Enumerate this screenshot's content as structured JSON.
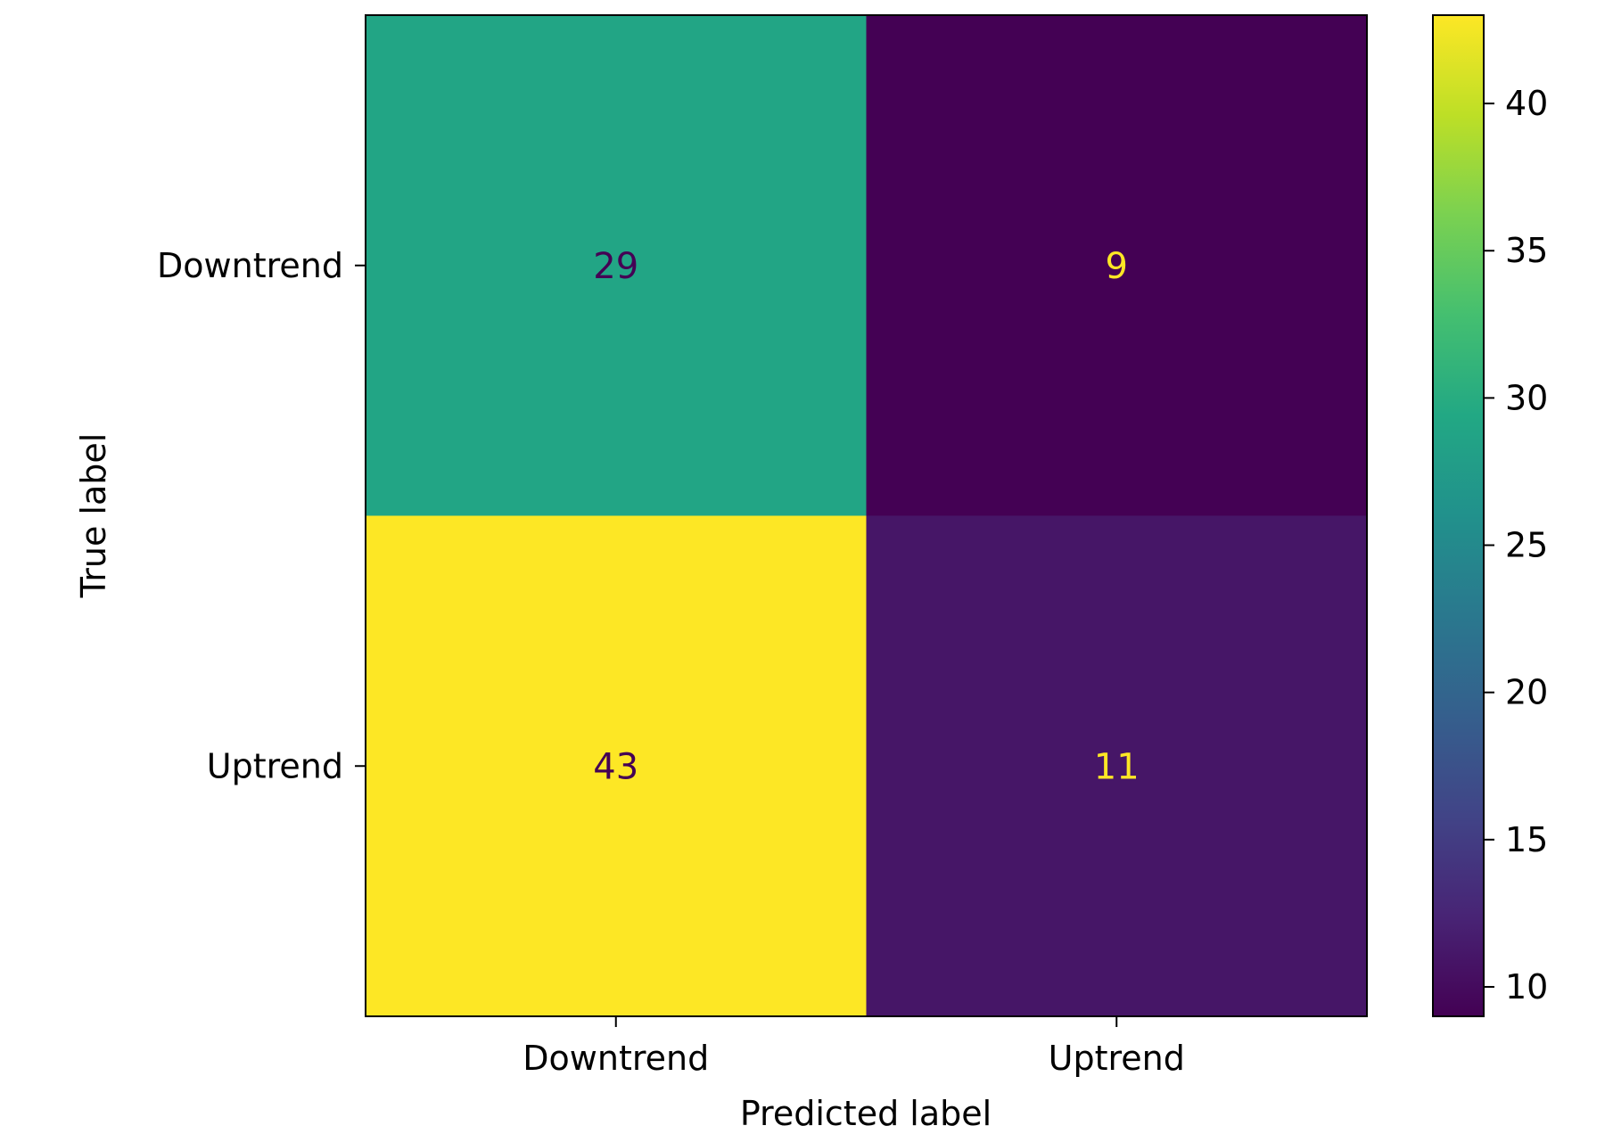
{
  "chart_data": {
    "type": "heatmap",
    "title": "",
    "xlabel": "Predicted label",
    "ylabel": "True label",
    "x_categories": [
      "Downtrend",
      "Uptrend"
    ],
    "y_categories": [
      "Downtrend",
      "Uptrend"
    ],
    "values": [
      [
        29,
        9
      ],
      [
        43,
        11
      ]
    ],
    "colormap": "viridis",
    "colorbar": {
      "range": [
        9,
        43
      ],
      "ticks": [
        "10",
        "15",
        "20",
        "25",
        "30",
        "35",
        "40"
      ]
    }
  }
}
